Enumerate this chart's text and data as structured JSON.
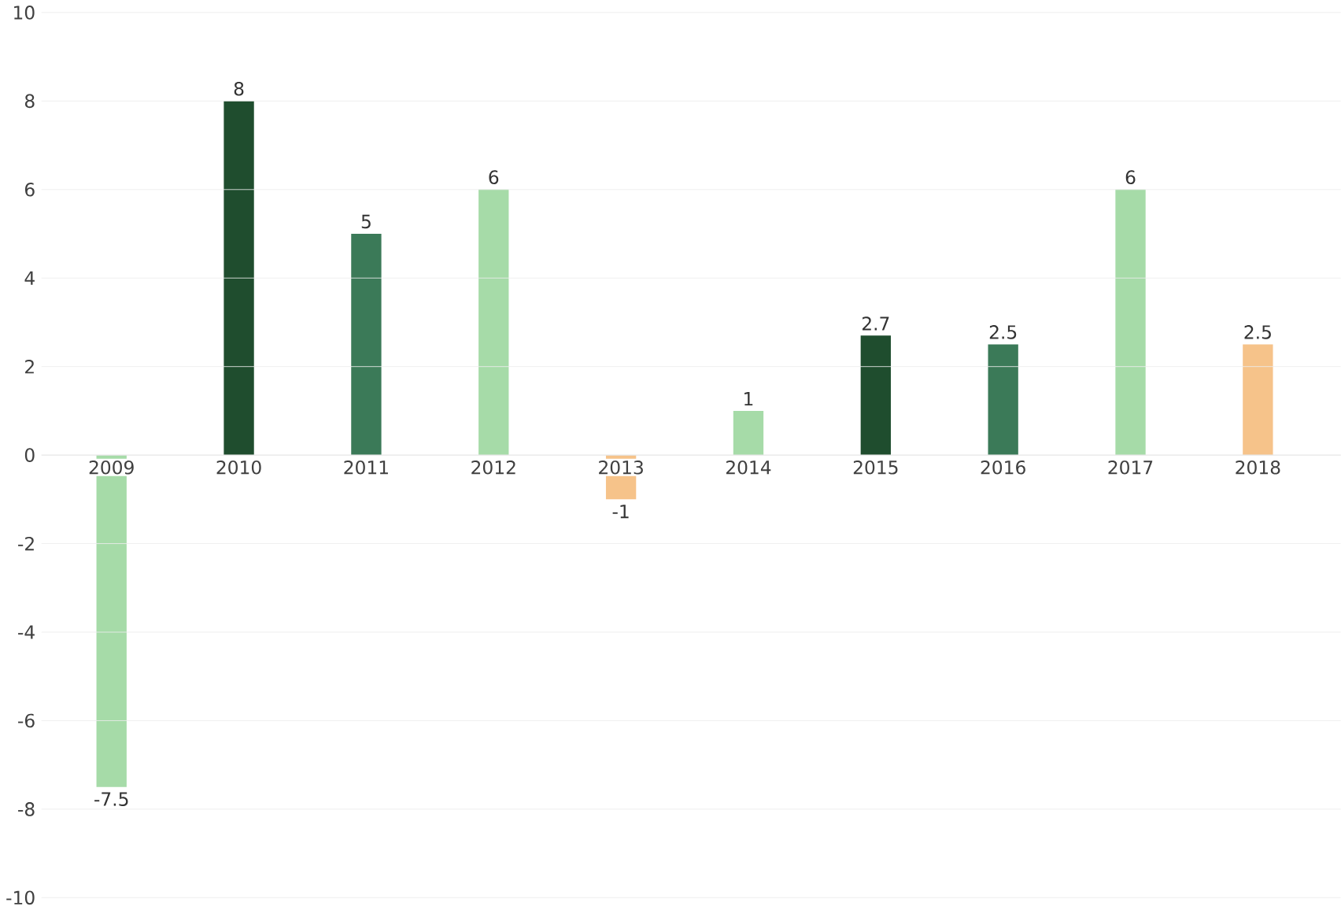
{
  "chart_data": {
    "type": "bar",
    "categories": [
      "2009",
      "2010",
      "2011",
      "2012",
      "2013",
      "2014",
      "2015",
      "2016",
      "2017",
      "2018"
    ],
    "values": [
      -7.5,
      8,
      5,
      6,
      -1,
      1,
      2.7,
      2.5,
      6,
      2.5
    ],
    "colors": [
      "#a6dba8",
      "#1f4d2e",
      "#3b7a58",
      "#a6dba8",
      "#f6c38a",
      "#a6dba8",
      "#1f4d2e",
      "#3b7a58",
      "#a6dba8",
      "#f6c38a"
    ],
    "ylim": [
      -10,
      10
    ],
    "yticks": [
      -10,
      -8,
      -6,
      -4,
      -2,
      0,
      2,
      4,
      6,
      8,
      10
    ],
    "grid": "y",
    "data_labels": true
  }
}
